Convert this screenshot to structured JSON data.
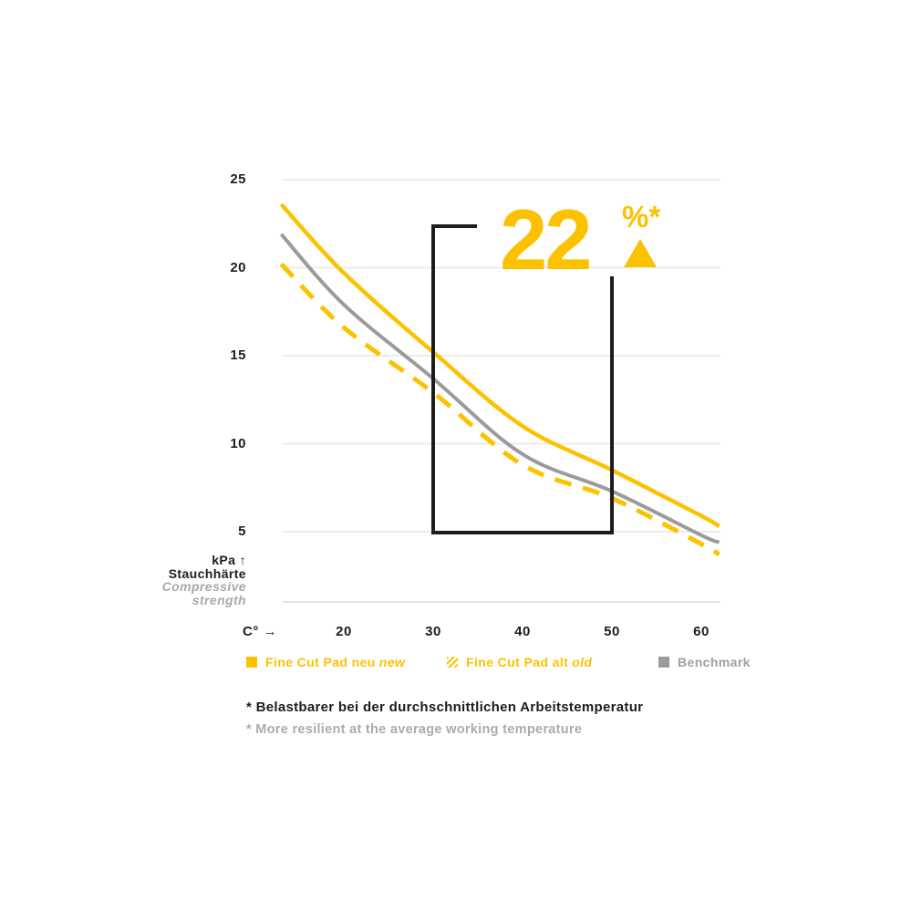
{
  "colors": {
    "yellow": "#fcc200",
    "gray": "#9b9b9b",
    "grid": "#ececec",
    "baseline": "#e3e3e3",
    "dark": "#1d1d1b",
    "muted_text": "#a9a9a9"
  },
  "chart_data": {
    "type": "line",
    "title": "",
    "xlabel": "C° →",
    "ylabel_unit": "kPa ↑",
    "ylabel_title": "Stauchhärte",
    "ylabel_subtitle_line1": "Compressive",
    "ylabel_subtitle_line2": "strength",
    "x_ticks": [
      20,
      30,
      40,
      50,
      60
    ],
    "y_ticks": [
      25,
      20,
      15,
      10,
      5
    ],
    "xlim": [
      13,
      62
    ],
    "ylim": [
      5,
      25
    ],
    "grid": true,
    "legend_position": "bottom",
    "series": [
      {
        "name": "Fine Cut Pad neu new",
        "style": "solid",
        "color": "yellow",
        "x": [
          13,
          20,
          30,
          40,
          50,
          60,
          62
        ],
        "values": [
          23.6,
          19.7,
          15.2,
          11.0,
          8.5,
          5.9,
          5.3
        ]
      },
      {
        "name": "Fine Cut Pad alt old",
        "style": "dashed",
        "color": "yellow",
        "x": [
          13,
          20,
          30,
          40,
          50,
          60,
          62
        ],
        "values": [
          20.2,
          16.6,
          12.9,
          8.8,
          6.9,
          4.3,
          3.7
        ]
      },
      {
        "name": "Benchmark",
        "style": "solid",
        "color": "gray",
        "x": [
          13,
          20,
          30,
          40,
          50,
          60,
          62
        ],
        "values": [
          21.9,
          17.9,
          13.7,
          9.4,
          7.3,
          4.8,
          4.4
        ]
      }
    ],
    "highlight": {
      "range_from_c": 30,
      "range_to_c": 50,
      "delta_value": "22",
      "delta_suffix": "%*"
    }
  },
  "annotation": {
    "value": "22",
    "suffix": "%*"
  },
  "axis": {
    "x_unit": "C° →",
    "y_unit": "kPa ↑",
    "y_title": "Stauchhärte",
    "y_subtitle_1": "Compressive",
    "y_subtitle_2": "strength"
  },
  "legend": [
    {
      "label": "Fine Cut Pad neu",
      "label_em": "new"
    },
    {
      "label": "Fine Cut Pad alt",
      "label_em": "old"
    },
    {
      "label": "Benchmark",
      "label_em": ""
    }
  ],
  "footnotes": {
    "de": "* Belastbarer bei der durchschnittlichen Arbeitstemperatur",
    "en": "* More resilient at the average working temperature"
  }
}
